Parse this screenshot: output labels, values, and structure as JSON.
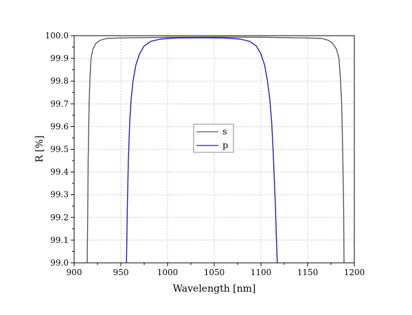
{
  "chart_data": {
    "type": "line",
    "title": "",
    "xlabel": "Wavelength [nm]",
    "ylabel": "R [%]",
    "xlim": [
      900,
      1200
    ],
    "ylim": [
      99.0,
      100.0
    ],
    "x_ticks": [
      900,
      950,
      1000,
      1050,
      1100,
      1150,
      1200
    ],
    "x_tick_labels": [
      "900",
      "950",
      "1000",
      "1050",
      "1100",
      "1150",
      "1200"
    ],
    "y_ticks": [
      99.0,
      99.1,
      99.2,
      99.3,
      99.4,
      99.5,
      99.6,
      99.7,
      99.8,
      99.9,
      100.0
    ],
    "y_tick_labels": [
      "99.0",
      "99.1",
      "99.2",
      "99.3",
      "99.4",
      "99.5",
      "99.6",
      "99.7",
      "99.8",
      "99.9",
      "100.0"
    ],
    "grid": true,
    "legend_position": "center",
    "series": [
      {
        "name": "s",
        "color": "#555555",
        "points": [
          [
            914,
            99.0
          ],
          [
            914.5,
            99.2
          ],
          [
            915,
            99.45
          ],
          [
            916,
            99.7
          ],
          [
            917,
            99.82
          ],
          [
            918,
            99.9
          ],
          [
            920,
            99.94
          ],
          [
            923,
            99.965
          ],
          [
            928,
            99.98
          ],
          [
            935,
            99.988
          ],
          [
            950,
            99.99
          ],
          [
            1000,
            99.993
          ],
          [
            1050,
            99.994
          ],
          [
            1100,
            99.993
          ],
          [
            1150,
            99.99
          ],
          [
            1165,
            99.988
          ],
          [
            1172,
            99.98
          ],
          [
            1177,
            99.965
          ],
          [
            1181,
            99.94
          ],
          [
            1183.5,
            99.9
          ],
          [
            1185,
            99.82
          ],
          [
            1186.5,
            99.7
          ],
          [
            1187.5,
            99.5
          ],
          [
            1188.5,
            99.25
          ],
          [
            1189,
            99.0
          ]
        ]
      },
      {
        "name": "p",
        "color": "#1a1ab8",
        "points": [
          [
            956,
            99.0
          ],
          [
            957,
            99.25
          ],
          [
            958,
            99.45
          ],
          [
            959.5,
            99.62
          ],
          [
            961,
            99.72
          ],
          [
            963,
            99.8
          ],
          [
            966,
            99.87
          ],
          [
            970,
            99.92
          ],
          [
            975,
            99.955
          ],
          [
            982,
            99.975
          ],
          [
            992,
            99.985
          ],
          [
            1010,
            99.99
          ],
          [
            1035,
            99.991
          ],
          [
            1060,
            99.99
          ],
          [
            1078,
            99.985
          ],
          [
            1088,
            99.975
          ],
          [
            1095,
            99.955
          ],
          [
            1100,
            99.92
          ],
          [
            1104,
            99.87
          ],
          [
            1107,
            99.8
          ],
          [
            1109.5,
            99.72
          ],
          [
            1111.5,
            99.62
          ],
          [
            1113,
            99.5
          ],
          [
            1114.5,
            99.35
          ],
          [
            1115.5,
            99.25
          ],
          [
            1116.5,
            99.12
          ],
          [
            1117.5,
            99.0
          ]
        ]
      }
    ]
  }
}
